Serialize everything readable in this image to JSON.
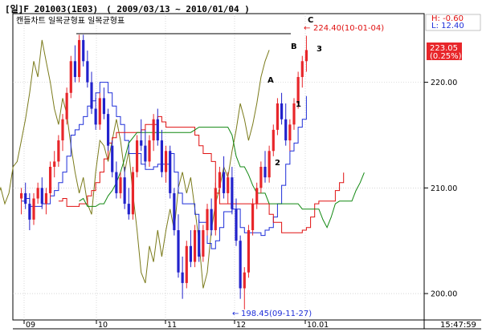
{
  "header": {
    "period_tab": "[일]",
    "instrument": "F 201003(1E03)",
    "date_range": "( 2009/03/13 ~ 2010/01/04 )"
  },
  "legend": {
    "text": "캔들차트  일목균형표  일목균형표"
  },
  "hl_box": {
    "high": "H: -0.60",
    "low": "L: 12.40"
  },
  "price_tag": {
    "price": "223.05",
    "change": "(0.25%)"
  },
  "time_readout": "15:47:59",
  "annotations": {
    "high_label": "224.40(10-01-04)",
    "low_label": "198.45(09-11-27)",
    "wave_A": "A",
    "wave_B": "B",
    "wave_C": "C",
    "wave_1": "1",
    "wave_2": "2",
    "wave_3": "3"
  },
  "colors": {
    "up": "#e8262a",
    "down": "#2222cc",
    "span_green": "#118811",
    "kijun_blue": "#1f2fd9",
    "senkou_red": "#e01111",
    "chikou_olive": "#7a7a1a",
    "grid": "#bfbfbf",
    "axis": "#000000"
  },
  "chart_data": {
    "type": "candlestick",
    "yaxis": {
      "ticks": [
        "220.00",
        "210.00",
        "200.00"
      ],
      "range": [
        197.5,
        226.5
      ]
    },
    "xaxis": {
      "ticks": [
        "09",
        "10",
        "11",
        "12",
        "10.01"
      ]
    },
    "candles": [
      [
        209.0,
        210.0,
        207.5,
        209.5
      ],
      [
        209.5,
        210.5,
        208.0,
        208.5
      ],
      [
        208.5,
        209.5,
        206.0,
        207.0
      ],
      [
        207.0,
        209.5,
        206.5,
        209.0
      ],
      [
        209.0,
        210.5,
        208.5,
        210.0
      ],
      [
        210.0,
        211.0,
        208.0,
        208.5
      ],
      [
        208.5,
        210.0,
        207.5,
        209.5
      ],
      [
        209.5,
        212.5,
        209.0,
        212.0
      ],
      [
        212.0,
        213.5,
        211.0,
        212.5
      ],
      [
        212.5,
        215.0,
        212.0,
        214.5
      ],
      [
        214.5,
        217.0,
        213.5,
        216.5
      ],
      [
        216.5,
        219.5,
        216.0,
        219.0
      ],
      [
        219.0,
        222.5,
        218.5,
        222.0
      ],
      [
        222.0,
        223.5,
        220.0,
        220.5
      ],
      [
        220.5,
        224.5,
        220.0,
        224.0
      ],
      [
        224.0,
        224.5,
        221.5,
        222.0
      ],
      [
        222.0,
        223.0,
        219.5,
        220.0
      ],
      [
        220.0,
        221.0,
        217.0,
        217.5
      ],
      [
        217.5,
        218.5,
        215.5,
        216.0
      ],
      [
        216.0,
        219.0,
        215.5,
        218.5
      ],
      [
        218.5,
        219.5,
        216.5,
        217.0
      ],
      [
        217.0,
        217.5,
        213.5,
        214.0
      ],
      [
        214.0,
        214.5,
        211.0,
        211.5
      ],
      [
        211.5,
        212.5,
        209.0,
        209.5
      ],
      [
        209.5,
        211.5,
        209.0,
        211.0
      ],
      [
        211.0,
        212.0,
        208.0,
        208.5
      ],
      [
        208.5,
        210.0,
        207.0,
        207.5
      ],
      [
        207.5,
        212.0,
        207.0,
        211.5
      ],
      [
        211.5,
        215.0,
        211.0,
        214.5
      ],
      [
        214.5,
        216.5,
        213.5,
        214.0
      ],
      [
        214.0,
        215.5,
        212.0,
        212.5
      ],
      [
        212.5,
        215.0,
        212.0,
        214.5
      ],
      [
        214.5,
        217.0,
        213.5,
        216.5
      ],
      [
        216.5,
        217.5,
        214.0,
        214.5
      ],
      [
        214.5,
        215.5,
        211.0,
        211.5
      ],
      [
        211.5,
        214.0,
        210.5,
        213.5
      ],
      [
        213.5,
        214.0,
        209.0,
        209.5
      ],
      [
        209.5,
        210.0,
        205.5,
        206.0
      ],
      [
        206.0,
        207.5,
        201.5,
        202.0
      ],
      [
        202.0,
        203.5,
        199.5,
        201.0
      ],
      [
        201.0,
        205.0,
        200.5,
        204.5
      ],
      [
        204.5,
        206.0,
        202.5,
        203.0
      ],
      [
        203.0,
        206.5,
        202.5,
        206.0
      ],
      [
        206.0,
        207.0,
        203.0,
        203.5
      ],
      [
        203.5,
        206.5,
        203.0,
        206.0
      ],
      [
        206.0,
        208.5,
        205.5,
        208.0
      ],
      [
        208.0,
        209.0,
        205.5,
        206.0
      ],
      [
        206.0,
        210.5,
        205.5,
        210.0
      ],
      [
        210.0,
        212.0,
        209.0,
        211.5
      ],
      [
        211.5,
        213.0,
        209.0,
        209.5
      ],
      [
        209.5,
        211.5,
        208.5,
        211.0
      ],
      [
        211.0,
        212.0,
        207.5,
        208.0
      ],
      [
        208.0,
        209.0,
        204.5,
        205.0
      ],
      [
        205.0,
        205.5,
        199.5,
        200.5
      ],
      [
        200.5,
        202.5,
        198.5,
        202.0
      ],
      [
        202.0,
        206.5,
        201.5,
        206.0
      ],
      [
        206.0,
        209.0,
        205.5,
        208.5
      ],
      [
        208.5,
        210.5,
        208.0,
        210.0
      ],
      [
        210.0,
        212.5,
        209.5,
        212.0
      ],
      [
        212.0,
        213.5,
        210.5,
        211.0
      ],
      [
        211.0,
        214.0,
        210.5,
        213.5
      ],
      [
        213.5,
        216.0,
        213.0,
        215.5
      ],
      [
        215.5,
        218.5,
        215.0,
        218.0
      ],
      [
        218.0,
        219.0,
        216.0,
        216.5
      ],
      [
        216.5,
        218.0,
        214.0,
        214.5
      ],
      [
        214.5,
        216.5,
        213.5,
        216.0
      ],
      [
        216.0,
        218.5,
        215.5,
        218.0
      ],
      [
        218.0,
        221.0,
        217.5,
        220.5
      ],
      [
        220.5,
        222.5,
        219.5,
        222.0
      ],
      [
        222.0,
        224.4,
        221.0,
        223.05
      ]
    ]
  }
}
